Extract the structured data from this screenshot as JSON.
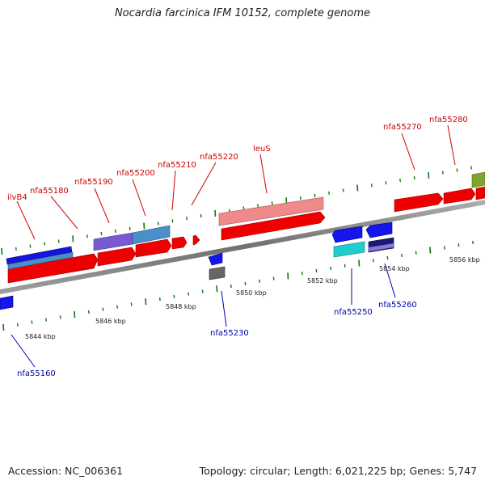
{
  "title": "Nocardia farcinica IFM 10152, complete genome",
  "footer": {
    "accession": "Accession: NC_006361",
    "topology": "Topology: circular; Length: 6,021,225 bp; Genes: 5,747"
  },
  "scale": {
    "unit": "kbp",
    "ticks": [
      "5844 kbp",
      "5846 kbp",
      "5848 kbp",
      "5850 kbp",
      "5852 kbp",
      "5854 kbp",
      "5856 kbp"
    ]
  },
  "colors": {
    "forward_label": "#cc0000",
    "reverse_label": "#0000aa",
    "axis": "#888888",
    "minor_tick": "#117711"
  },
  "forward_genes": [
    {
      "label": "ilvB4"
    },
    {
      "label": "nfa55180"
    },
    {
      "label": "nfa55190"
    },
    {
      "label": "nfa55200"
    },
    {
      "label": "nfa55210"
    },
    {
      "label": "nfa55220"
    },
    {
      "label": "leuS"
    },
    {
      "label": "nfa55270"
    },
    {
      "label": "nfa55280"
    }
  ],
  "reverse_genes": [
    {
      "label": "nfa55160"
    },
    {
      "label": "nfa55230"
    },
    {
      "label": "nfa55250"
    },
    {
      "label": "nfa55260"
    }
  ]
}
